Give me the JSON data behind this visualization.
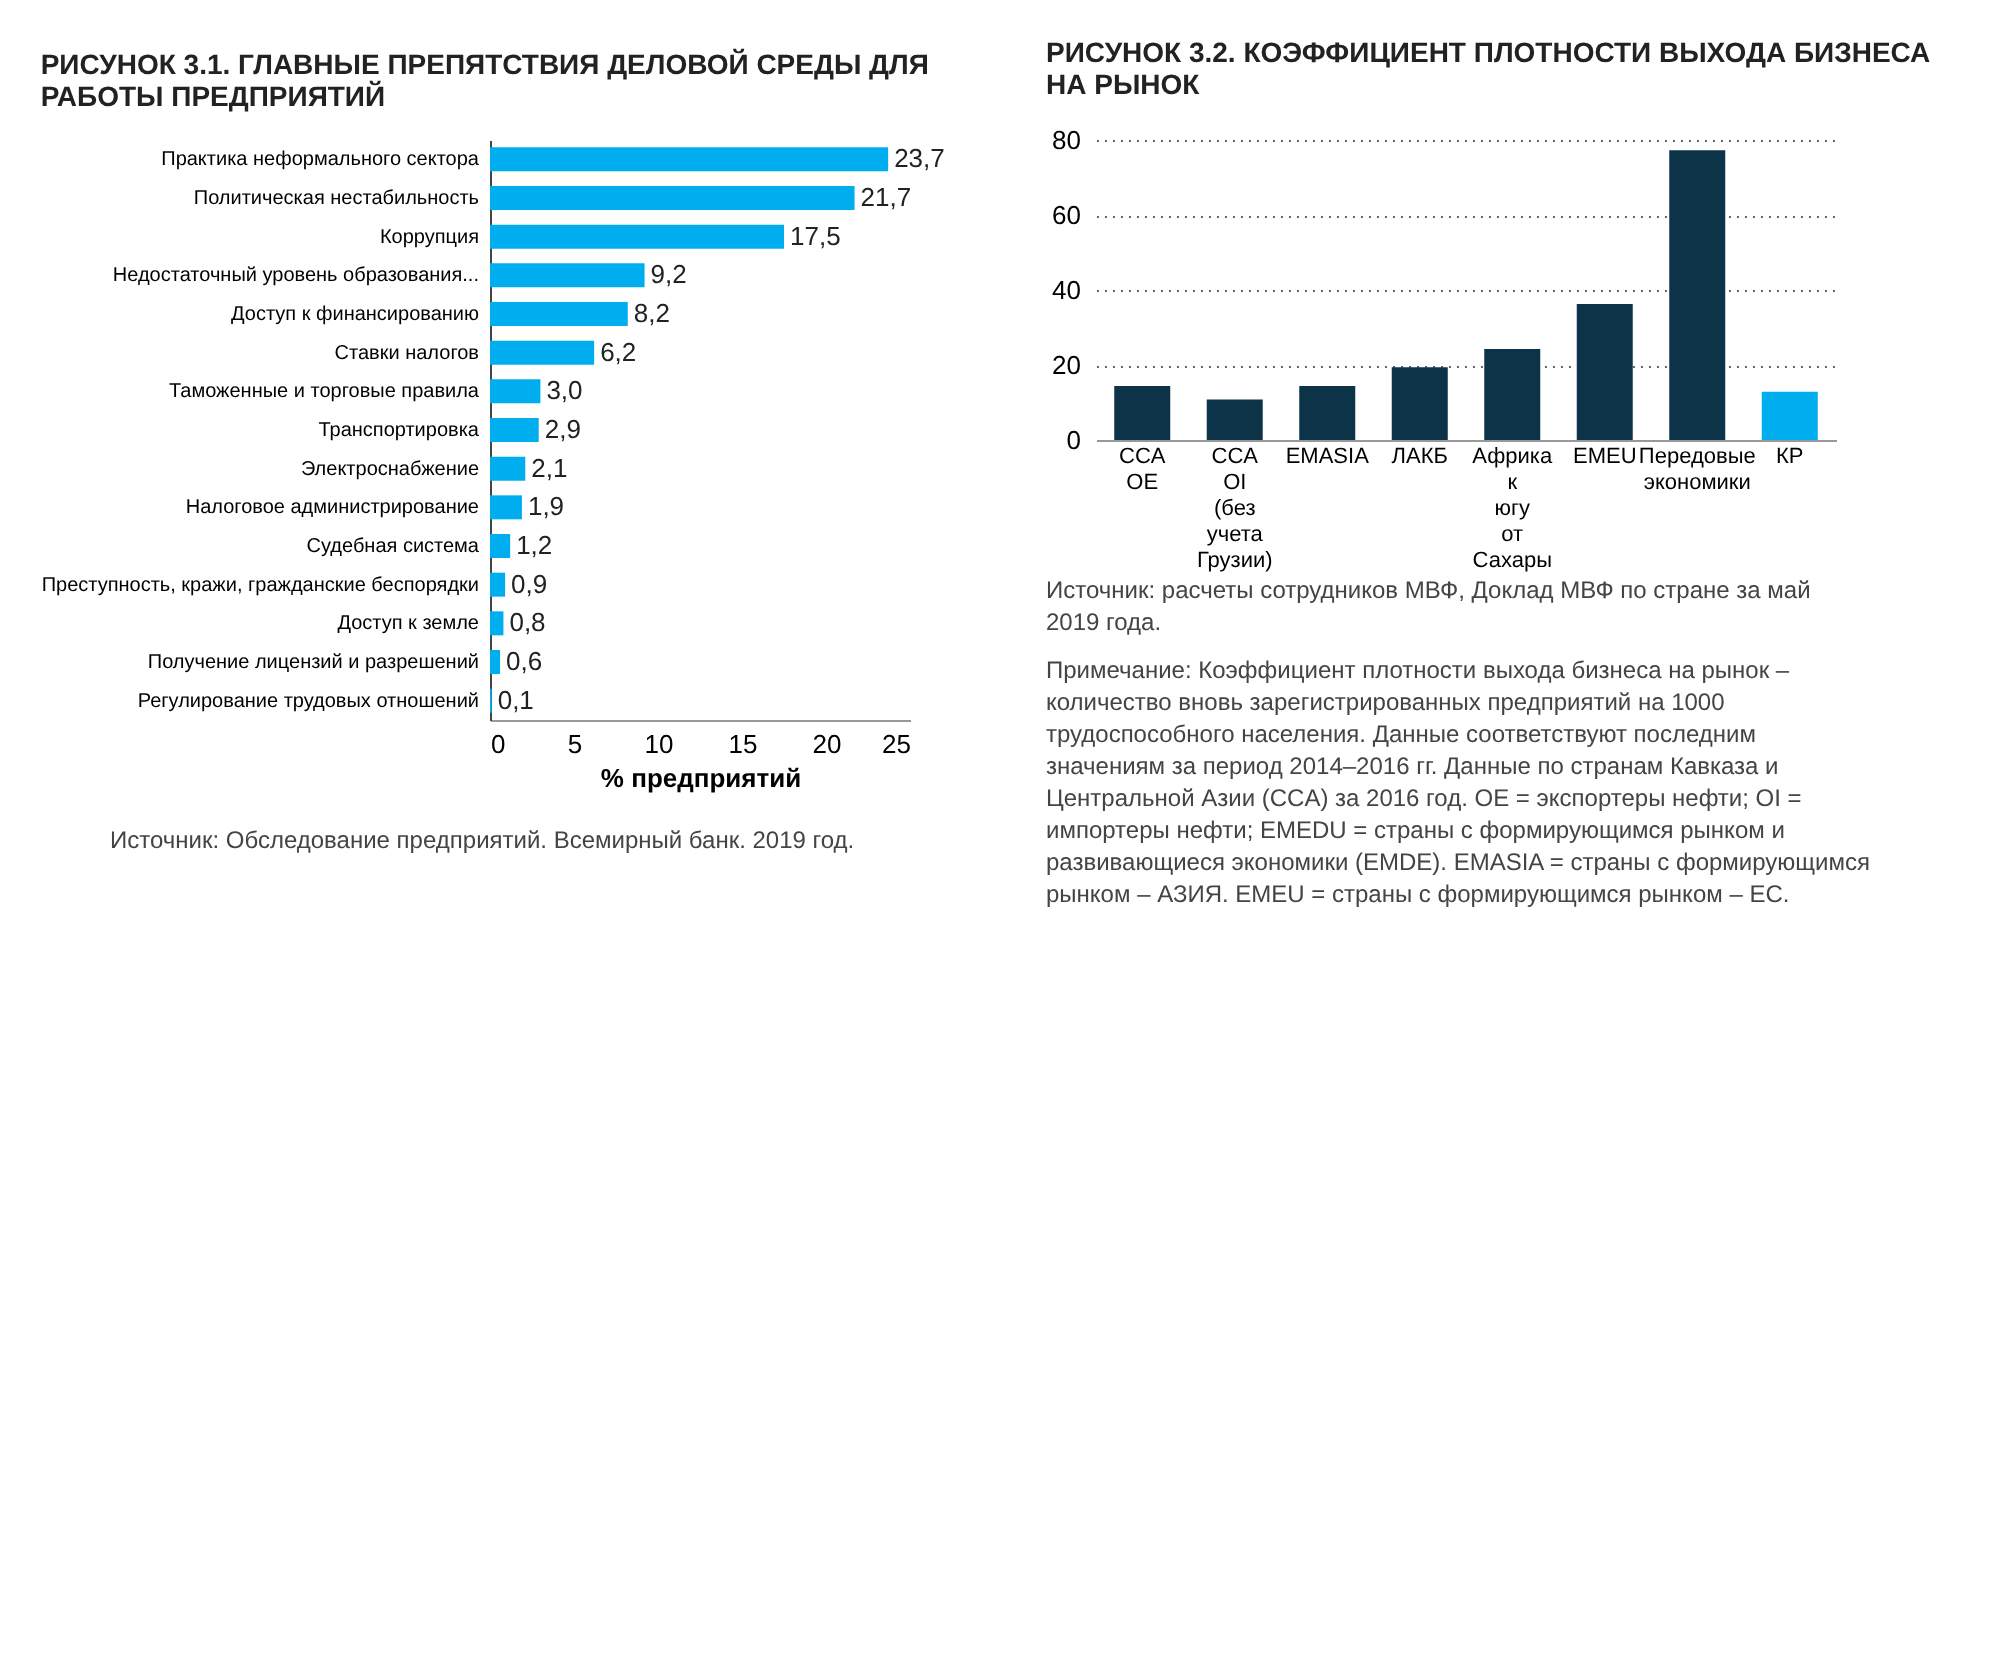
{
  "chart_data": [
    {
      "type": "bar",
      "orientation": "horizontal",
      "title": "РИСУНОК 3.1. ГЛАВНЫЕ ПРЕПЯТСТВИЯ ДЕЛОВОЙ СРЕДЫ ДЛЯ РАБОТЫ ПРЕДПРИЯТИЙ",
      "xlabel": "% предприятий",
      "categories": [
        "Практика неформального сектора",
        "Политическая нестабильность",
        "Коррупция",
        "Недостаточный уровень образования...",
        "Доступ к финансированию",
        "Ставки налогов",
        "Таможенные и торговые правила",
        "Транспортировка",
        "Электроснабжение",
        "Налоговое администрирование",
        "Судебная система",
        "Преступность, кражи, гражданские беспорядки",
        "Доступ к земле",
        "Получение лицензий и разрешений",
        "Регулирование трудовых отношений"
      ],
      "series": [
        {
          "color": "#00aeef",
          "values": [
            23.7,
            21.7,
            17.5,
            9.2,
            8.2,
            6.2,
            3.0,
            2.9,
            2.1,
            1.9,
            1.2,
            0.9,
            0.8,
            0.6,
            0.1
          ],
          "value_labels": [
            "23,7",
            "21,7",
            "17,5",
            "9,2",
            "8,2",
            "6,2",
            "3,0",
            "2,9",
            "2,1",
            "1,9",
            "1,2",
            "0,9",
            "0,8",
            "0,6",
            "0,1"
          ]
        }
      ],
      "xlim": [
        0,
        25
      ],
      "xticks": [
        0,
        5,
        10,
        15,
        20,
        25
      ],
      "grid": false,
      "annotations": [
        "Источник: Обследование предприятий. Всемирный банк. 2019 год."
      ]
    },
    {
      "type": "bar",
      "title": "РИСУНОК 3.2. КОЭФФИЦИЕНТ ПЛОТНОСТИ ВЫХОДА БИЗНЕСА НА РЫНОК",
      "categories": [
        "CCA OE",
        "CCA OI (без учета Грузии)",
        "EMASIA",
        "ЛАКБ",
        "Африка к югу от Сахары",
        "EMEU",
        "Передовые экономики",
        "КР"
      ],
      "series": [
        {
          "colors": [
            "#0d3349",
            "#0d3349",
            "#0d3349",
            "#0d3349",
            "#0d3349",
            "#0d3349",
            "#0d3349",
            "#00aeef"
          ],
          "values": [
            14.4,
            10.8,
            14.4,
            19.4,
            24.3,
            36.3,
            77.3,
            12.9
          ]
        }
      ],
      "ylim": [
        0,
        80
      ],
      "yticks": [
        0,
        20,
        40,
        60,
        80
      ],
      "grid": "y",
      "annotations": [
        "Источник: расчеты сотрудников МВФ, Доклад МВФ по стране за май 2019 года.",
        "Примечание: Коэффициент плотности выхода бизнеса на рынок – количество вновь зарегистрированных предприятий на 1000 трудоспособного населения. Данные соответствуют последним значениям за период 2014–2016 гг. Данные по странам Кавказа и Центральной Азии (CCA) за 2016 год. OE = экспортеры нефти; OI = импортеры нефти; EMEDU = страны с формирующимся рынком и развивающиеся экономики (EMDE).  EMASIA = страны с формирующимся рынком – АЗИЯ. EMEU = страны с формирующимся рынком – ЕС."
      ]
    }
  ]
}
